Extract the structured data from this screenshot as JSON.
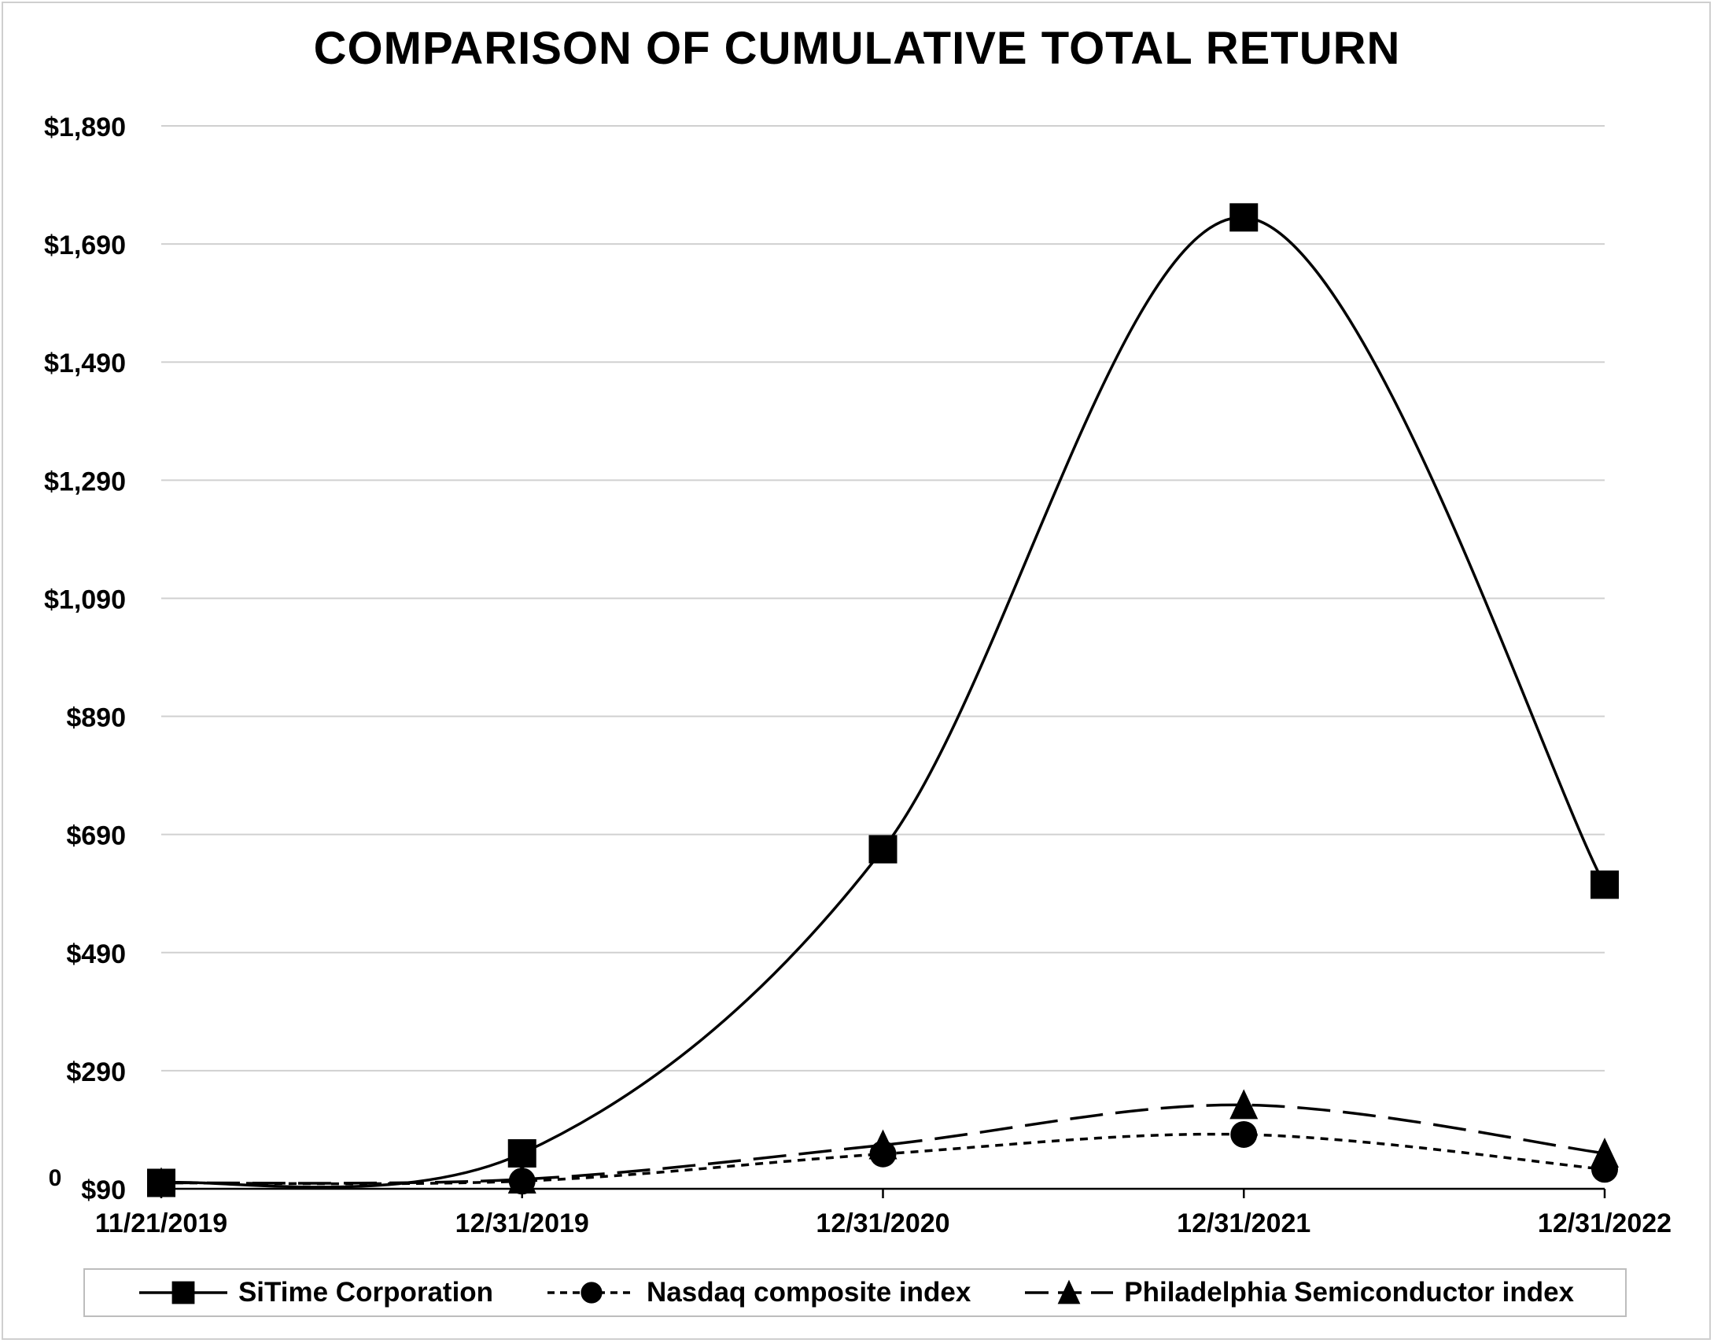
{
  "chart_data": {
    "type": "line",
    "title": "COMPARISON OF CUMULATIVE TOTAL RETURN",
    "xlabel": "",
    "ylabel": "",
    "categories": [
      "11/21/2019",
      "12/31/2019",
      "12/31/2020",
      "12/31/2021",
      "12/31/2022"
    ],
    "y_ticks": [
      "$90",
      "$290",
      "$490",
      "$690",
      "$890",
      "$1,090",
      "$1,290",
      "$1,490",
      "$1,690",
      "$1,890"
    ],
    "y_tick_values": [
      90,
      290,
      490,
      690,
      890,
      1090,
      1290,
      1490,
      1690,
      1890
    ],
    "y_extra_tick": "0",
    "ylim": [
      90,
      1890
    ],
    "grid": true,
    "smooth": true,
    "legend_position": "bottom",
    "series": [
      {
        "name": "SiTime Corporation",
        "marker": "square",
        "dash": "solid",
        "color": "#000000",
        "values": [
          100,
          150,
          665,
          1735,
          605
        ]
      },
      {
        "name": "Nasdaq composite index",
        "marker": "circle",
        "dash": "dotted",
        "color": "#000000",
        "values": [
          100,
          103,
          149,
          182,
          123
        ]
      },
      {
        "name": "Philadelphia Semiconductor index",
        "marker": "triangle",
        "dash": "long-dash",
        "color": "#000000",
        "values": [
          100,
          106,
          164,
          232,
          150
        ]
      }
    ]
  }
}
